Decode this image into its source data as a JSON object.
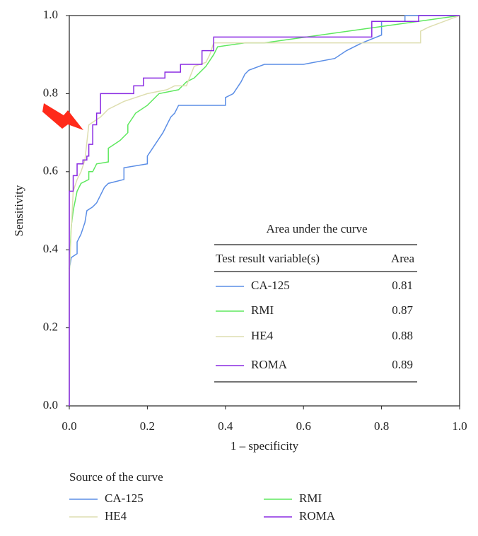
{
  "chart_data": {
    "type": "line",
    "xlabel": "1 – specificity",
    "ylabel": "Sensitivity",
    "xlim": [
      0,
      1
    ],
    "ylim": [
      0,
      1
    ],
    "xticks": [
      {
        "value": 0,
        "label": "0.0"
      },
      {
        "value": 0.2,
        "label": "0.2"
      },
      {
        "value": 0.4,
        "label": "0.4"
      },
      {
        "value": 0.6,
        "label": "0.6"
      },
      {
        "value": 0.8,
        "label": "0.8"
      },
      {
        "value": 1,
        "label": "1.0"
      }
    ],
    "yticks": [
      {
        "value": 0,
        "label": "0.0"
      },
      {
        "value": 0.2,
        "label": "0.2"
      },
      {
        "value": 0.4,
        "label": "0.4"
      },
      {
        "value": 0.6,
        "label": "0.6"
      },
      {
        "value": 0.8,
        "label": "0.8"
      },
      {
        "value": 1,
        "label": "1.0"
      }
    ],
    "legend_title": "Source of the curve",
    "series": [
      {
        "name": "CA-125",
        "color": "#5b8ee6",
        "x": [
          0,
          0.005,
          0.02,
          0.02,
          0.03,
          0.04,
          0.045,
          0.06,
          0.07,
          0.08,
          0.09,
          0.1,
          0.14,
          0.14,
          0.2,
          0.2,
          0.22,
          0.24,
          0.26,
          0.27,
          0.28,
          0.4,
          0.4,
          0.42,
          0.44,
          0.45,
          0.46,
          0.5,
          0.6,
          0.68,
          0.71,
          0.75,
          0.8,
          0.8,
          0.86,
          0.86,
          1
        ],
        "values": [
          0.35,
          0.38,
          0.39,
          0.42,
          0.44,
          0.47,
          0.5,
          0.51,
          0.52,
          0.54,
          0.56,
          0.57,
          0.58,
          0.61,
          0.62,
          0.64,
          0.67,
          0.7,
          0.74,
          0.75,
          0.77,
          0.77,
          0.79,
          0.8,
          0.83,
          0.85,
          0.86,
          0.875,
          0.875,
          0.89,
          0.91,
          0.93,
          0.95,
          0.985,
          0.985,
          1,
          1
        ]
      },
      {
        "name": "RMI",
        "color": "#5ee85e",
        "x": [
          0,
          0.005,
          0.01,
          0.02,
          0.03,
          0.05,
          0.05,
          0.06,
          0.07,
          0.1,
          0.1,
          0.13,
          0.15,
          0.15,
          0.17,
          0.2,
          0.23,
          0.28,
          0.3,
          0.32,
          0.35,
          0.37,
          0.38,
          0.45,
          0.5,
          1
        ],
        "values": [
          0.35,
          0.46,
          0.5,
          0.55,
          0.57,
          0.58,
          0.6,
          0.6,
          0.62,
          0.625,
          0.66,
          0.68,
          0.7,
          0.72,
          0.75,
          0.77,
          0.8,
          0.81,
          0.83,
          0.84,
          0.87,
          0.9,
          0.92,
          0.93,
          0.93,
          1
        ]
      },
      {
        "name": "HE4",
        "color": "#dedeb0",
        "x": [
          0,
          0.005,
          0.01,
          0.02,
          0.03,
          0.04,
          0.05,
          0.08,
          0.1,
          0.14,
          0.2,
          0.25,
          0.27,
          0.3,
          0.32,
          0.35,
          0.36,
          0.37,
          0.9,
          0.9,
          0.92,
          1
        ],
        "values": [
          0.33,
          0.45,
          0.55,
          0.58,
          0.6,
          0.63,
          0.72,
          0.74,
          0.76,
          0.78,
          0.8,
          0.81,
          0.82,
          0.82,
          0.87,
          0.88,
          0.9,
          0.93,
          0.93,
          0.96,
          0.97,
          1
        ]
      },
      {
        "name": "ROMA",
        "color": "#8a2be2",
        "x": [
          0,
          0,
          0.01,
          0.01,
          0.02,
          0.02,
          0.035,
          0.035,
          0.045,
          0.045,
          0.05,
          0.05,
          0.06,
          0.06,
          0.07,
          0.07,
          0.08,
          0.08,
          0.165,
          0.165,
          0.19,
          0.19,
          0.245,
          0.245,
          0.285,
          0.285,
          0.34,
          0.34,
          0.37,
          0.37,
          0.775,
          0.775,
          0.895,
          0.895,
          1
        ],
        "values": [
          0,
          0.55,
          0.55,
          0.59,
          0.59,
          0.62,
          0.62,
          0.63,
          0.63,
          0.64,
          0.64,
          0.67,
          0.67,
          0.72,
          0.72,
          0.75,
          0.75,
          0.8,
          0.8,
          0.82,
          0.82,
          0.84,
          0.84,
          0.855,
          0.855,
          0.875,
          0.875,
          0.91,
          0.91,
          0.945,
          0.945,
          0.985,
          0.985,
          1,
          1
        ]
      }
    ],
    "auc_table": {
      "title": "Area under the curve",
      "columns": [
        "Test result variable(s)",
        "Area"
      ],
      "rows": [
        [
          "CA-125",
          0.81
        ],
        [
          "RMI",
          0.87
        ],
        [
          "HE4",
          0.88
        ],
        [
          "ROMA",
          0.89
        ]
      ]
    }
  }
}
